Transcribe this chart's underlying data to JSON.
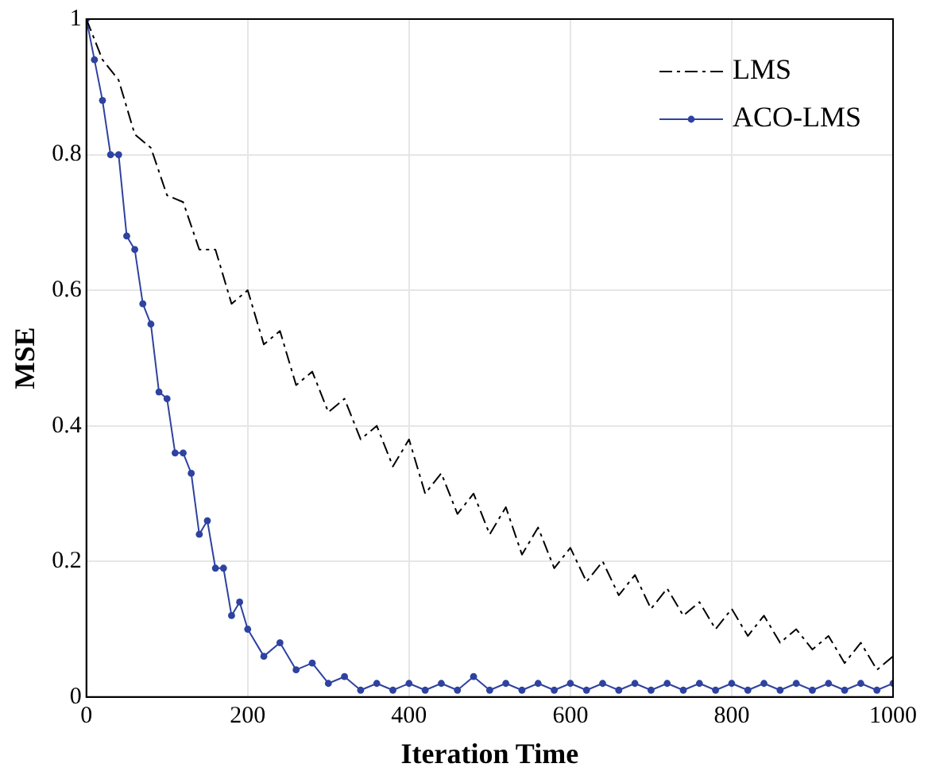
{
  "chart_data": {
    "type": "line",
    "xlabel": "Iteration Time",
    "ylabel": "MSE",
    "xlim": [
      0,
      1000
    ],
    "ylim": [
      0,
      1
    ],
    "xticks": [
      0,
      200,
      400,
      600,
      800,
      1000
    ],
    "yticks": [
      0,
      0.2,
      0.4,
      0.6,
      0.8,
      1
    ],
    "grid": true,
    "legend": "top right",
    "series": [
      {
        "name": "LMS",
        "color": "#000000",
        "line_style": "dashed",
        "marker": "none",
        "x": [
          0,
          20,
          40,
          60,
          80,
          100,
          120,
          140,
          160,
          180,
          200,
          220,
          240,
          260,
          280,
          300,
          320,
          340,
          360,
          380,
          400,
          420,
          440,
          460,
          480,
          500,
          520,
          540,
          560,
          580,
          600,
          620,
          640,
          660,
          680,
          700,
          720,
          740,
          760,
          780,
          800,
          820,
          840,
          860,
          880,
          900,
          920,
          940,
          960,
          980,
          1000
        ],
        "values": [
          1,
          0.94,
          0.91,
          0.83,
          0.81,
          0.74,
          0.73,
          0.66,
          0.66,
          0.58,
          0.6,
          0.52,
          0.54,
          0.46,
          0.48,
          0.42,
          0.44,
          0.38,
          0.4,
          0.34,
          0.38,
          0.3,
          0.33,
          0.27,
          0.3,
          0.24,
          0.28,
          0.21,
          0.25,
          0.19,
          0.22,
          0.17,
          0.2,
          0.15,
          0.18,
          0.13,
          0.16,
          0.12,
          0.14,
          0.1,
          0.13,
          0.09,
          0.12,
          0.08,
          0.1,
          0.07,
          0.09,
          0.05,
          0.08,
          0.04,
          0.06
        ]
      },
      {
        "name": "ACO-LMS",
        "color": "#2e42a0",
        "line_style": "solid",
        "marker": "circle",
        "x": [
          0,
          10,
          20,
          30,
          40,
          50,
          60,
          70,
          80,
          90,
          100,
          110,
          120,
          130,
          140,
          150,
          160,
          170,
          180,
          190,
          200,
          220,
          240,
          260,
          280,
          300,
          320,
          340,
          360,
          380,
          400,
          420,
          440,
          460,
          480,
          500,
          520,
          540,
          560,
          580,
          600,
          620,
          640,
          660,
          680,
          700,
          720,
          740,
          760,
          780,
          800,
          820,
          840,
          860,
          880,
          900,
          920,
          940,
          960,
          980,
          1000
        ],
        "values": [
          1,
          0.94,
          0.88,
          0.8,
          0.8,
          0.68,
          0.66,
          0.58,
          0.55,
          0.45,
          0.44,
          0.36,
          0.36,
          0.33,
          0.24,
          0.26,
          0.19,
          0.19,
          0.12,
          0.14,
          0.1,
          0.06,
          0.08,
          0.04,
          0.05,
          0.02,
          0.03,
          0.01,
          0.02,
          0.01,
          0.02,
          0.01,
          0.02,
          0.01,
          0.03,
          0.01,
          0.02,
          0.01,
          0.02,
          0.01,
          0.02,
          0.01,
          0.02,
          0.01,
          0.02,
          0.01,
          0.02,
          0.01,
          0.02,
          0.01,
          0.02,
          0.01,
          0.02,
          0.01,
          0.02,
          0.01,
          0.02,
          0.01,
          0.02,
          0.01,
          0.02
        ]
      }
    ]
  }
}
